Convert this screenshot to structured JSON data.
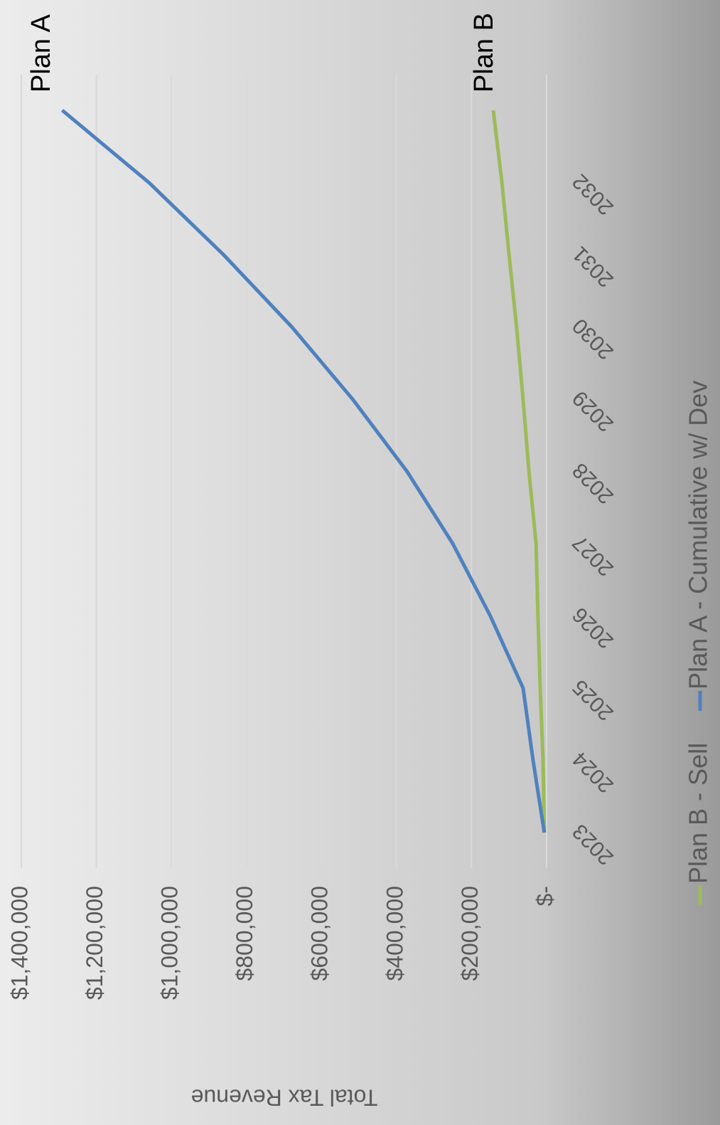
{
  "chart_data": {
    "type": "line",
    "y_axis_title": "Total Tax Revenue",
    "categories": [
      "2023",
      "2024",
      "2025",
      "2026",
      "2027",
      "2028",
      "2029",
      "2030",
      "2031",
      "2032",
      null
    ],
    "series": [
      {
        "name": "Plan B - Sell",
        "color": "#9bbb59",
        "annotation": "Plan B",
        "values": [
          6000,
          9500,
          17000,
          23000,
          28000,
          47000,
          62600,
          80000,
          100000,
          119000,
          142000
        ]
      },
      {
        "name": "Plan A - Cumulative w/ Dev",
        "color": "#4f81bd",
        "annotation": "Plan A",
        "values": [
          6000,
          36000,
          62600,
          150000,
          250000,
          372000,
          517000,
          679000,
          861000,
          1060000,
          1291000
        ]
      }
    ],
    "ylim": [
      0,
      1400000
    ],
    "yticks": [
      {
        "value": 0,
        "label": "$-"
      },
      {
        "value": 200000,
        "label": "$200,000"
      },
      {
        "value": 400000,
        "label": "$400,000"
      },
      {
        "value": 600000,
        "label": "$600,000"
      },
      {
        "value": 800000,
        "label": "$800,000"
      },
      {
        "value": 1000000,
        "label": "$1,000,000"
      },
      {
        "value": 1200000,
        "label": "$1,200,000"
      },
      {
        "value": 1400000,
        "label": "$1,400,000"
      }
    ],
    "grid": true
  }
}
